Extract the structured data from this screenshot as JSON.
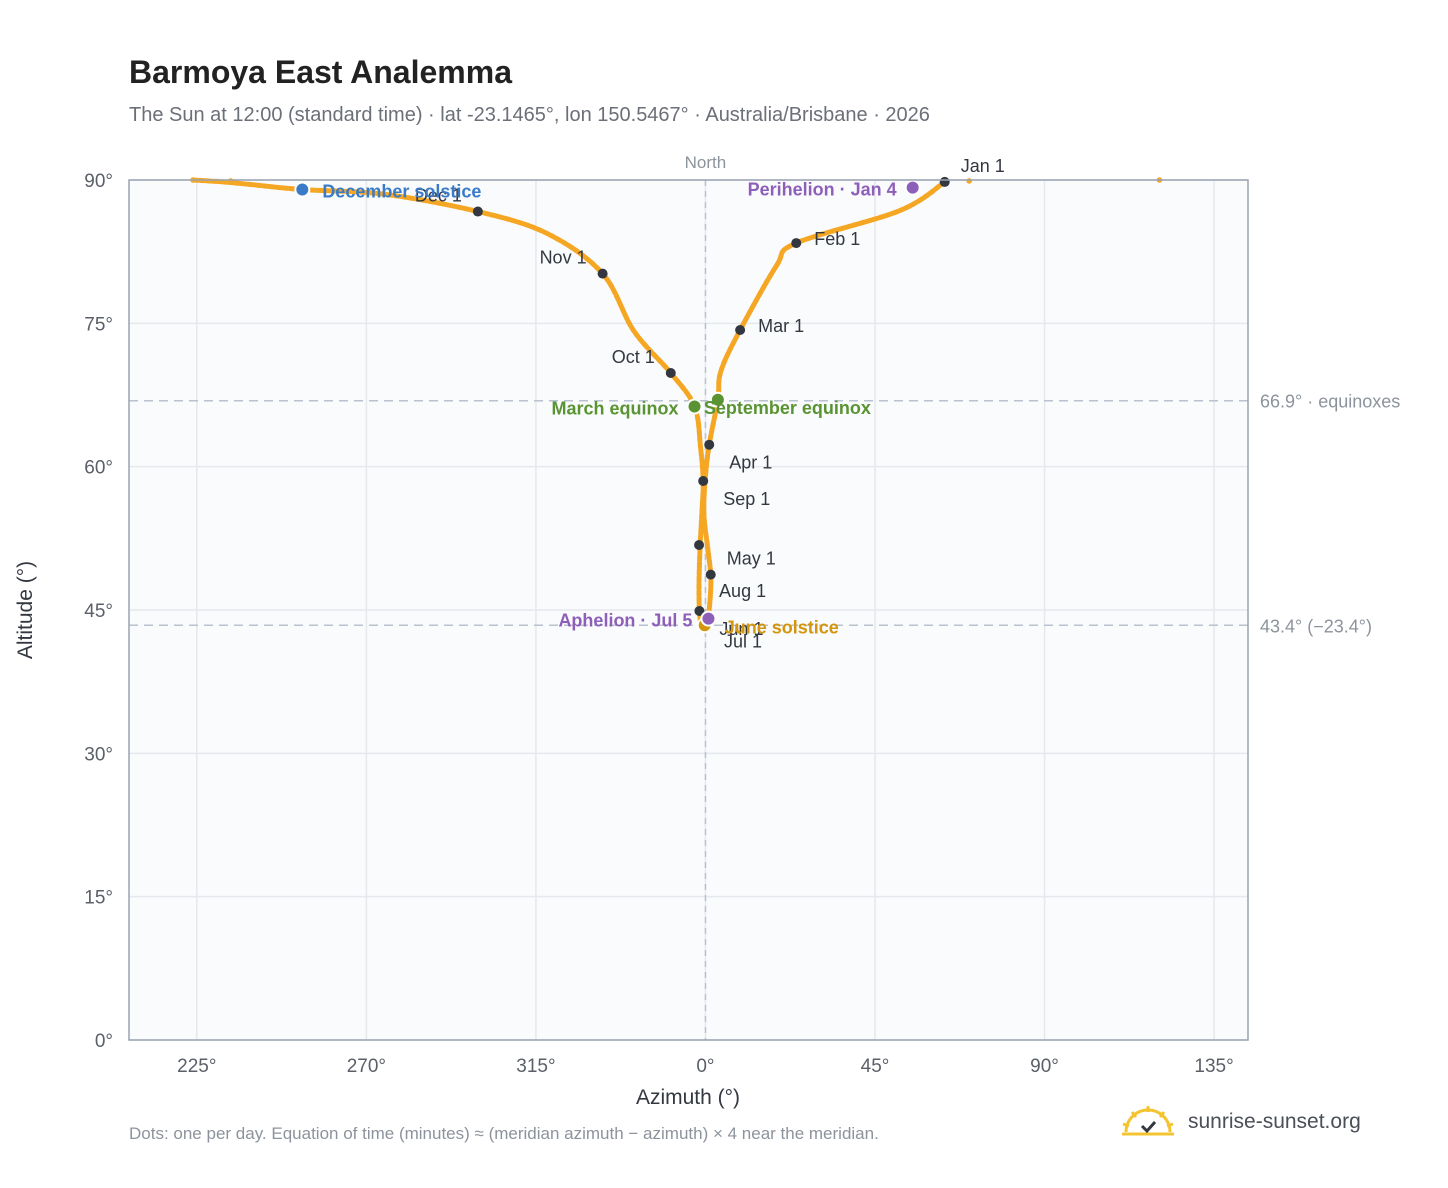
{
  "title": "Barmoya East Analemma",
  "subtitle": "The Sun at 12:00 (standard time) · lat -23.1465°, lon 150.5467° · Australia/Brisbane · 2026",
  "footer": "Dots: one per day. Equation of time (minutes) ≈ (meridian azimuth − azimuth) × 4 near the meridian.",
  "brand": {
    "name": "sunrise-sunset.org",
    "icon": "sun-logo-icon",
    "color": "#f4c430"
  },
  "colors": {
    "curve": "#f5a623",
    "month_marker": "#333840",
    "solstice_december": "#3a7bc8",
    "solstice_june": "#d4960f",
    "equinox": "#5a9432",
    "apsis": "#8e5fb8",
    "plot_background": "#f9fbfd",
    "grid": "#e5e8ed",
    "reference_line": "#b9c2ce"
  },
  "chart_data": {
    "type": "scatter",
    "title": "Barmoya East Analemma",
    "xlabel": "Azimuth (°)",
    "ylabel": "Altitude (°)",
    "xlim": [
      207,
      504
    ],
    "ylim": [
      0,
      90
    ],
    "x_ticks": [
      225,
      270,
      315,
      360,
      405,
      450,
      495
    ],
    "x_tick_labels": [
      "225°",
      "270°",
      "315°",
      "0°",
      "45°",
      "90°",
      "135°"
    ],
    "y_ticks": [
      0,
      15,
      30,
      45,
      60,
      75,
      90
    ],
    "y_tick_labels": [
      "0°",
      "15°",
      "30°",
      "45°",
      "60°",
      "75°",
      "90°"
    ],
    "grid": true,
    "meridian": {
      "azimuth": 360,
      "label": "North"
    },
    "reference_lines": [
      {
        "altitude": 66.9,
        "label": "66.9° · equinoxes"
      },
      {
        "altitude": 43.4,
        "label": "43.4° (−23.4°)"
      }
    ],
    "analemma_path": [
      [
        423.5,
        89.8
      ],
      [
        411.6,
        86.8
      ],
      [
        384.1,
        83.4
      ],
      [
        378.8,
        81.0
      ],
      [
        369.2,
        74.3
      ],
      [
        364.1,
        70.0
      ],
      [
        363.3,
        67.0
      ],
      [
        361.0,
        62.3
      ],
      [
        359.9,
        58.5
      ],
      [
        359.6,
        55.0
      ],
      [
        360.6,
        51.5
      ],
      [
        361.4,
        48.7
      ],
      [
        361.3,
        46.5
      ],
      [
        360.8,
        44.5
      ],
      [
        360.2,
        44.0
      ],
      [
        359.0,
        43.4
      ],
      [
        358.4,
        44.9
      ],
      [
        358.3,
        48.0
      ],
      [
        358.6,
        51.8
      ],
      [
        359.1,
        55.5
      ],
      [
        359.4,
        58.5
      ],
      [
        358.7,
        62.0
      ],
      [
        357.1,
        66.3
      ],
      [
        350.8,
        69.8
      ],
      [
        341.0,
        74.2
      ],
      [
        332.7,
        80.2
      ],
      [
        318.0,
        84.4
      ],
      [
        299.6,
        86.7
      ],
      [
        275.0,
        88.5
      ],
      [
        253.0,
        89.0
      ],
      [
        240.0,
        89.5
      ],
      [
        232.0,
        89.8
      ],
      [
        224.0,
        90.0
      ]
    ],
    "edge_points": [
      [
        224.0,
        90.0
      ],
      [
        234.0,
        89.9
      ],
      [
        480.5,
        90.0
      ],
      [
        430.0,
        89.9
      ]
    ],
    "month_markers": [
      {
        "label": "Jan 1",
        "az": 423.5,
        "alt": 89.8,
        "label_pos": "above-right"
      },
      {
        "label": "Feb 1",
        "az": 384.1,
        "alt": 83.4,
        "label_pos": "right"
      },
      {
        "label": "Mar 1",
        "az": 369.2,
        "alt": 74.3,
        "label_pos": "right"
      },
      {
        "label": "Apr 1",
        "az": 361.0,
        "alt": 62.3,
        "label_pos": "below-right"
      },
      {
        "label": "May 1",
        "az": 361.4,
        "alt": 48.7,
        "label_pos": "above-right"
      },
      {
        "label": "Jun 1",
        "az": 358.4,
        "alt": 44.9,
        "label_pos": "below-right"
      },
      {
        "label": "Jul 1",
        "az": 359.6,
        "alt": 43.6,
        "label_pos": "below-right"
      },
      {
        "label": "Aug 1",
        "az": 358.3,
        "alt": 51.8,
        "label_pos": "far-below-right"
      },
      {
        "label": "Sep 1",
        "az": 359.4,
        "alt": 58.5,
        "label_pos": "below-right"
      },
      {
        "label": "Oct 1",
        "az": 350.8,
        "alt": 69.8,
        "label_pos": "left"
      },
      {
        "label": "Nov 1",
        "az": 332.7,
        "alt": 80.2,
        "label_pos": "left"
      },
      {
        "label": "Dec 1",
        "az": 299.6,
        "alt": 86.7,
        "label_pos": "left"
      }
    ],
    "events": [
      {
        "label": "December solstice",
        "az": 253.0,
        "alt": 89.0,
        "kind": "solstice_december",
        "label_pos": "right"
      },
      {
        "label": "June solstice",
        "az": 359.8,
        "alt": 43.4,
        "kind": "solstice_june",
        "label_pos": "right"
      },
      {
        "label": "March equinox",
        "az": 357.1,
        "alt": 66.3,
        "kind": "equinox",
        "label_pos": "left"
      },
      {
        "label": "September equinox",
        "az": 363.3,
        "alt": 67.0,
        "kind": "equinox",
        "label_pos": "below-right"
      },
      {
        "label": "Perihelion · Jan 4",
        "az": 415.0,
        "alt": 89.2,
        "kind": "apsis",
        "label_pos": "left"
      },
      {
        "label": "Aphelion · Jul 5",
        "az": 360.8,
        "alt": 44.1,
        "kind": "apsis",
        "label_pos": "left"
      }
    ]
  }
}
